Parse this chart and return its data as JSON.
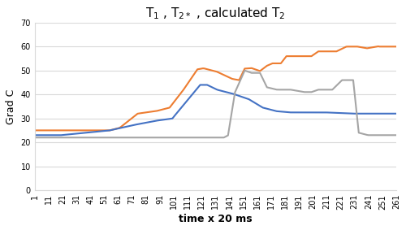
{
  "title": "T$_1$ , T$_{2*}$ , calculated T$_2$",
  "xlabel": "time x 20 ms",
  "ylabel": "Grad C",
  "ylim": [
    0,
    70
  ],
  "yticks": [
    0,
    10,
    20,
    30,
    40,
    50,
    60,
    70
  ],
  "orange_color": "#ED7D31",
  "blue_color": "#4472C4",
  "grey_color": "#A5A5A5",
  "bg_color": "#FFFFFF",
  "grid_color": "#D9D9D9",
  "title_fontsize": 11,
  "axis_label_fontsize": 9,
  "tick_fontsize": 7,
  "linewidth": 1.5
}
